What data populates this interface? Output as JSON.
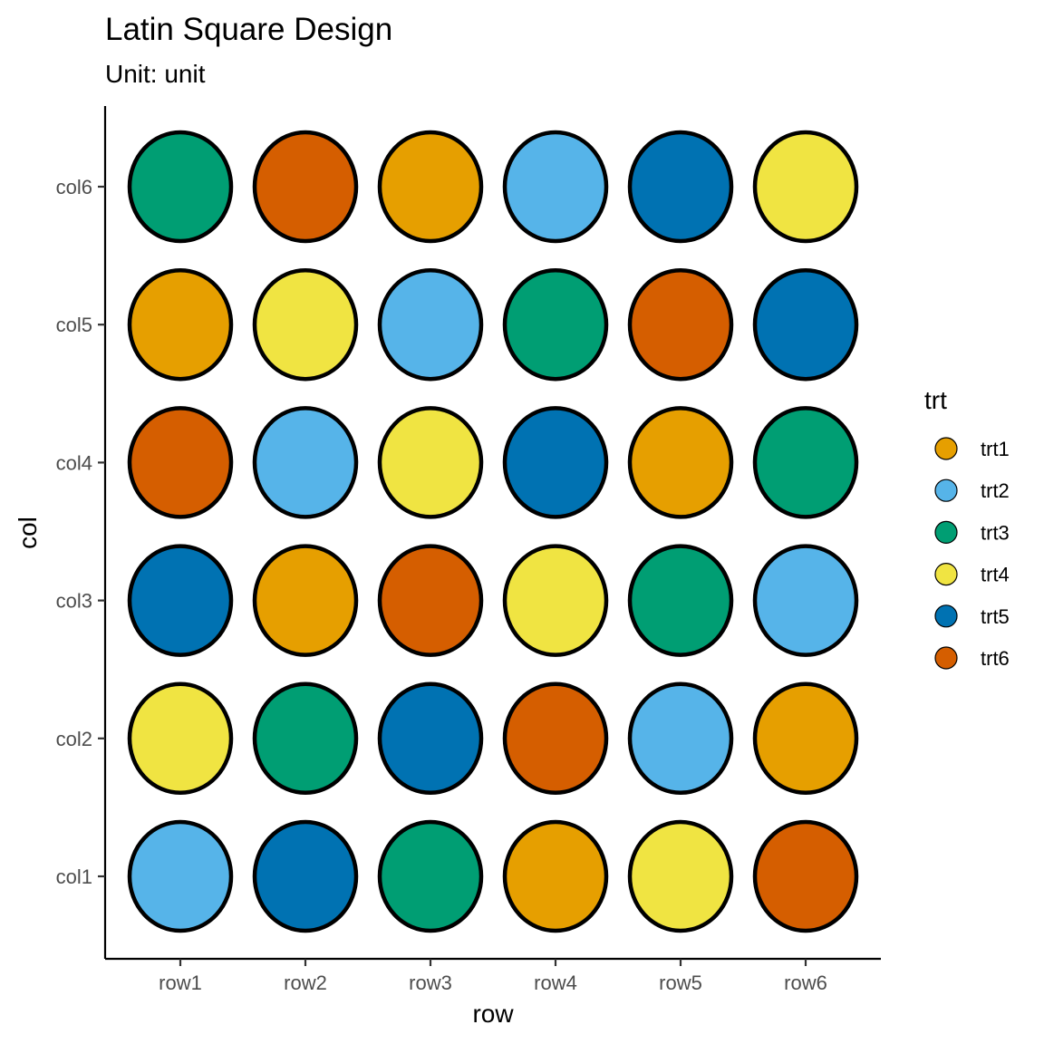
{
  "chart_data": {
    "type": "scatter",
    "title": "Latin Square Design",
    "subtitle": "Unit: unit",
    "xlabel": "row",
    "ylabel": "col",
    "x_categories": [
      "row1",
      "row2",
      "row3",
      "row4",
      "row5",
      "row6"
    ],
    "y_categories": [
      "col1",
      "col2",
      "col3",
      "col4",
      "col5",
      "col6"
    ],
    "grid": false,
    "legend": {
      "title": "trt",
      "position": "right",
      "entries": [
        {
          "label": "trt1",
          "color": "#E69F00"
        },
        {
          "label": "trt2",
          "color": "#56B4E9"
        },
        {
          "label": "trt3",
          "color": "#009E73"
        },
        {
          "label": "trt4",
          "color": "#F0E442"
        },
        {
          "label": "trt5",
          "color": "#0072B2"
        },
        {
          "label": "trt6",
          "color": "#D55E00"
        }
      ]
    },
    "points": [
      {
        "x": "row1",
        "y": "col1",
        "trt": "trt2"
      },
      {
        "x": "row2",
        "y": "col1",
        "trt": "trt5"
      },
      {
        "x": "row3",
        "y": "col1",
        "trt": "trt3"
      },
      {
        "x": "row4",
        "y": "col1",
        "trt": "trt1"
      },
      {
        "x": "row5",
        "y": "col1",
        "trt": "trt4"
      },
      {
        "x": "row6",
        "y": "col1",
        "trt": "trt6"
      },
      {
        "x": "row1",
        "y": "col2",
        "trt": "trt4"
      },
      {
        "x": "row2",
        "y": "col2",
        "trt": "trt3"
      },
      {
        "x": "row3",
        "y": "col2",
        "trt": "trt5"
      },
      {
        "x": "row4",
        "y": "col2",
        "trt": "trt6"
      },
      {
        "x": "row5",
        "y": "col2",
        "trt": "trt2"
      },
      {
        "x": "row6",
        "y": "col2",
        "trt": "trt1"
      },
      {
        "x": "row1",
        "y": "col3",
        "trt": "trt5"
      },
      {
        "x": "row2",
        "y": "col3",
        "trt": "trt1"
      },
      {
        "x": "row3",
        "y": "col3",
        "trt": "trt6"
      },
      {
        "x": "row4",
        "y": "col3",
        "trt": "trt4"
      },
      {
        "x": "row5",
        "y": "col3",
        "trt": "trt3"
      },
      {
        "x": "row6",
        "y": "col3",
        "trt": "trt2"
      },
      {
        "x": "row1",
        "y": "col4",
        "trt": "trt6"
      },
      {
        "x": "row2",
        "y": "col4",
        "trt": "trt2"
      },
      {
        "x": "row3",
        "y": "col4",
        "trt": "trt4"
      },
      {
        "x": "row4",
        "y": "col4",
        "trt": "trt5"
      },
      {
        "x": "row5",
        "y": "col4",
        "trt": "trt1"
      },
      {
        "x": "row6",
        "y": "col4",
        "trt": "trt3"
      },
      {
        "x": "row1",
        "y": "col5",
        "trt": "trt1"
      },
      {
        "x": "row2",
        "y": "col5",
        "trt": "trt4"
      },
      {
        "x": "row3",
        "y": "col5",
        "trt": "trt2"
      },
      {
        "x": "row4",
        "y": "col5",
        "trt": "trt3"
      },
      {
        "x": "row5",
        "y": "col5",
        "trt": "trt6"
      },
      {
        "x": "row6",
        "y": "col5",
        "trt": "trt5"
      },
      {
        "x": "row1",
        "y": "col6",
        "trt": "trt3"
      },
      {
        "x": "row2",
        "y": "col6",
        "trt": "trt6"
      },
      {
        "x": "row3",
        "y": "col6",
        "trt": "trt1"
      },
      {
        "x": "row4",
        "y": "col6",
        "trt": "trt2"
      },
      {
        "x": "row5",
        "y": "col6",
        "trt": "trt5"
      },
      {
        "x": "row6",
        "y": "col6",
        "trt": "trt4"
      }
    ]
  }
}
